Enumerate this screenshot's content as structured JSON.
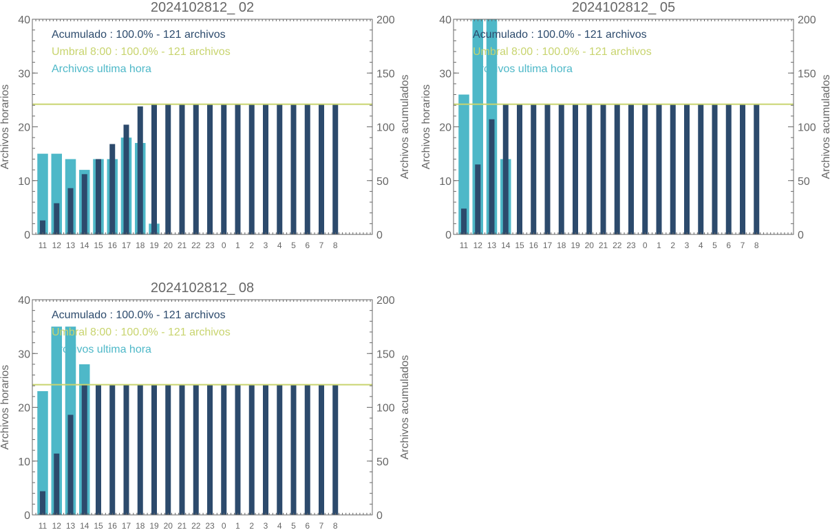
{
  "colors": {
    "hourly": "#4eb8c8",
    "cumulative": "#2c4a6c",
    "threshold": "#c8d46e",
    "axis": "#666666"
  },
  "chart_data": [
    {
      "type": "bar",
      "title": "2024102812_ 02",
      "ylabel_left": "Archivos horarios",
      "ylabel_right": "Archivos acumulados",
      "ylim_left": [
        0,
        40
      ],
      "ylim_right": [
        0,
        200
      ],
      "yticks_left": [
        "0",
        "10",
        "20",
        "30",
        "40"
      ],
      "yticks_right": [
        "0",
        "50",
        "100",
        "150",
        "200"
      ],
      "categories": [
        "11",
        "12",
        "13",
        "14",
        "15",
        "16",
        "17",
        "18",
        "19",
        "20",
        "21",
        "22",
        "23",
        "0",
        "1",
        "2",
        "3",
        "4",
        "5",
        "6",
        "7",
        "8"
      ],
      "legend": [
        "Acumulado : 100.0% - 121 archivos",
        "Umbral 8:00 : 100.0% - 121 archivos",
        "Archivos ultima hora"
      ],
      "threshold": 121,
      "series": [
        {
          "name": "Archivos ultima hora",
          "axis": "left",
          "values": [
            15,
            15,
            14,
            12,
            14,
            14,
            18,
            17,
            2,
            0,
            0,
            0,
            0,
            0,
            0,
            0,
            0,
            0,
            0,
            0,
            0,
            0
          ]
        },
        {
          "name": "Acumulado",
          "axis": "right",
          "values": [
            13,
            29,
            43,
            56,
            70,
            84,
            102,
            119,
            121,
            121,
            121,
            121,
            121,
            121,
            121,
            121,
            121,
            121,
            121,
            121,
            121,
            121
          ]
        }
      ]
    },
    {
      "type": "bar",
      "title": "2024102812_ 05",
      "ylabel_left": "Archivos horarios",
      "ylabel_right": "Archivos acumulados",
      "ylim_left": [
        0,
        40
      ],
      "ylim_right": [
        0,
        200
      ],
      "yticks_left": [
        "0",
        "10",
        "20",
        "30",
        "40"
      ],
      "yticks_right": [
        "0",
        "50",
        "100",
        "150",
        "200"
      ],
      "categories": [
        "11",
        "12",
        "13",
        "14",
        "15",
        "16",
        "17",
        "18",
        "19",
        "20",
        "21",
        "22",
        "23",
        "0",
        "1",
        "2",
        "3",
        "4",
        "5",
        "6",
        "7",
        "8"
      ],
      "legend": [
        "Acumulado : 100.0% - 121 archivos",
        "Umbral 8:00 : 100.0% - 121 archivos",
        "Archivos ultima hora"
      ],
      "threshold": 121,
      "series": [
        {
          "name": "Archivos ultima hora",
          "axis": "left",
          "values": [
            26,
            41,
            42,
            14,
            0,
            0,
            0,
            0,
            0,
            0,
            0,
            0,
            0,
            0,
            0,
            0,
            0,
            0,
            0,
            0,
            0,
            0
          ]
        },
        {
          "name": "Acumulado",
          "axis": "right",
          "values": [
            24,
            65,
            107,
            121,
            121,
            121,
            121,
            121,
            121,
            121,
            121,
            121,
            121,
            121,
            121,
            121,
            121,
            121,
            121,
            121,
            121,
            121
          ]
        }
      ]
    },
    {
      "type": "bar",
      "title": "2024102812_ 08",
      "ylabel_left": "Archivos horarios",
      "ylabel_right": "Archivos acumulados",
      "ylim_left": [
        0,
        40
      ],
      "ylim_right": [
        0,
        200
      ],
      "yticks_left": [
        "0",
        "10",
        "20",
        "30",
        "40"
      ],
      "yticks_right": [
        "0",
        "50",
        "100",
        "150",
        "200"
      ],
      "categories": [
        "11",
        "12",
        "13",
        "14",
        "15",
        "16",
        "17",
        "18",
        "19",
        "20",
        "21",
        "22",
        "23",
        "0",
        "1",
        "2",
        "3",
        "4",
        "5",
        "6",
        "7",
        "8"
      ],
      "legend": [
        "Acumulado : 100.0% - 121 archivos",
        "Umbral 8:00 : 100.0% - 121 archivos",
        "Archivos ultima hora"
      ],
      "threshold": 121,
      "series": [
        {
          "name": "Archivos ultima hora",
          "axis": "left",
          "values": [
            23,
            35,
            35,
            28,
            0,
            0,
            0,
            0,
            0,
            0,
            0,
            0,
            0,
            0,
            0,
            0,
            0,
            0,
            0,
            0,
            0,
            0
          ]
        },
        {
          "name": "Acumulado",
          "axis": "right",
          "values": [
            22,
            57,
            93,
            121,
            121,
            121,
            121,
            121,
            121,
            121,
            121,
            121,
            121,
            121,
            121,
            121,
            121,
            121,
            121,
            121,
            121,
            121
          ]
        }
      ]
    }
  ]
}
